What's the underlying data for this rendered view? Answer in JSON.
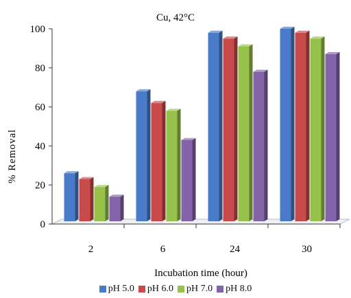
{
  "chart_data": {
    "type": "bar",
    "title": "Cu, 42°C",
    "xlabel": "Incubation time (hour)",
    "ylabel": "% Removal",
    "categories": [
      "2",
      "6",
      "24",
      "30"
    ],
    "ylim": [
      0,
      100
    ],
    "yticks": [
      0,
      20,
      40,
      60,
      80,
      100
    ],
    "grid": false,
    "legend_position": "bottom",
    "series": [
      {
        "name": "pH 5.0",
        "color": "#4a7bc8",
        "values": [
          26,
          68,
          98,
          100
        ]
      },
      {
        "name": "pH 6.0",
        "color": "#c84a4a",
        "values": [
          23,
          62,
          95,
          98
        ]
      },
      {
        "name": "pH 7.0",
        "color": "#96c14a",
        "values": [
          19,
          58,
          91,
          95
        ]
      },
      {
        "name": "pH 8.0",
        "color": "#8464a8",
        "values": [
          14,
          43,
          78,
          87
        ]
      }
    ]
  }
}
